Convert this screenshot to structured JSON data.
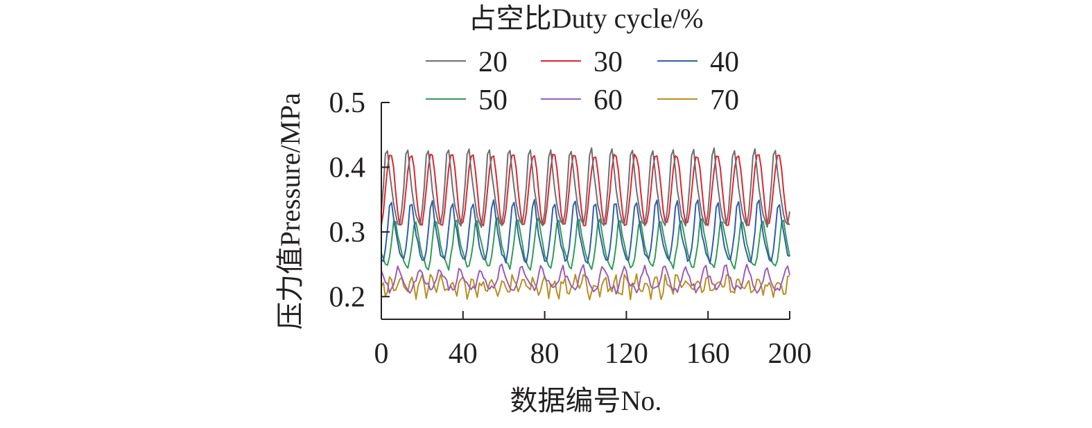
{
  "chart_data": {
    "type": "line",
    "title": "",
    "legend_title": "占空比Duty cycle/%",
    "legend_position": "top",
    "xlabel": "数据编号No.",
    "ylabel": "压力值Pressure/MPa",
    "xlim": [
      0,
      200
    ],
    "ylim": [
      0.165,
      0.5
    ],
    "x_ticks": [
      "0",
      "40",
      "80",
      "120",
      "160",
      "200"
    ],
    "y_ticks": [
      "0.2",
      "0.3",
      "0.4",
      "0.5"
    ],
    "grid": false,
    "series": [
      {
        "name": "20",
        "color": "#6d6e70",
        "shape": "peaky",
        "period": 10,
        "phase": 1.0,
        "min": 0.31,
        "max": 0.445,
        "noise": 0.003
      },
      {
        "name": "30",
        "color": "#e0242f",
        "shape": "smooth",
        "period": 10,
        "phase": 0.5,
        "min": 0.31,
        "max": 0.42,
        "noise": 0.003
      },
      {
        "name": "40",
        "color": "#2e5ea8",
        "shape": "peaky",
        "period": 10,
        "phase": 9.0,
        "min": 0.255,
        "max": 0.36,
        "noise": 0.004
      },
      {
        "name": "50",
        "color": "#2f9c57",
        "shape": "peaky",
        "period": 10,
        "phase": 7.0,
        "min": 0.245,
        "max": 0.33,
        "noise": 0.004
      },
      {
        "name": "60",
        "color": "#9c5bb8",
        "shape": "peaky",
        "period": 10,
        "phase": 5.0,
        "min": 0.21,
        "max": 0.25,
        "noise": 0.006
      },
      {
        "name": "70",
        "color": "#b8901e",
        "shape": "noisy",
        "period": 10,
        "phase": 3.0,
        "min": 0.205,
        "max": 0.228,
        "noise": 0.01
      }
    ]
  }
}
